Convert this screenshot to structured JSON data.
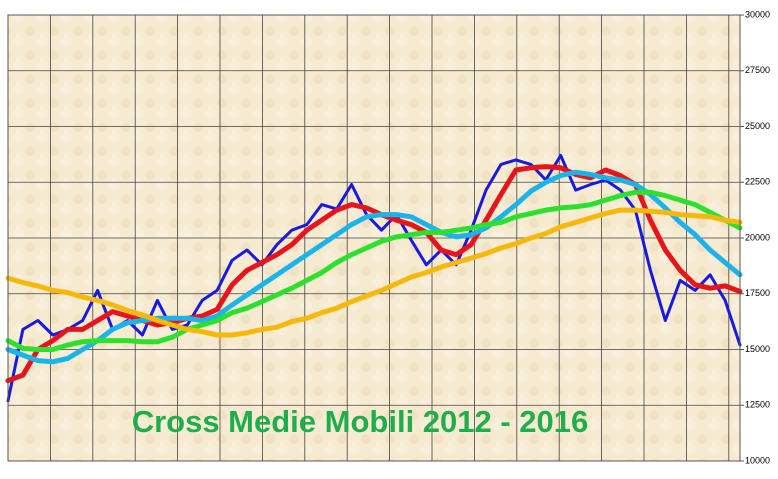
{
  "chart_data": {
    "type": "line",
    "title": "Cross Medie Mobili 2012 - 2016",
    "x": [
      0,
      1,
      2,
      3,
      4,
      5,
      6,
      7,
      8,
      9,
      10,
      11,
      12,
      13,
      14,
      15,
      16,
      17,
      18,
      19,
      20,
      21,
      22,
      23,
      24,
      25,
      26,
      27,
      28,
      29,
      30,
      31,
      32,
      33,
      34,
      35,
      36,
      37,
      38,
      39,
      40,
      41,
      42,
      43,
      44,
      45,
      46,
      47,
      48,
      49
    ],
    "xlim": [
      0,
      49
    ],
    "ylim": [
      10000,
      30000
    ],
    "yticks": [
      10000,
      12500,
      15000,
      17500,
      20000,
      22500,
      25000,
      27500,
      30000
    ],
    "grid": true,
    "series": [
      {
        "color": "#1a1adc",
        "values": [
          12700,
          15900,
          16300,
          15650,
          15900,
          16300,
          17650,
          15900,
          16300,
          15650,
          17200,
          15900,
          16100,
          17200,
          17650,
          19000,
          19460,
          18800,
          19700,
          20350,
          20600,
          21500,
          21300,
          22400,
          21050,
          20350,
          21050,
          19900,
          18800,
          19460,
          18800,
          20350,
          22150,
          23300,
          23500,
          23300,
          22600,
          23700,
          22150,
          22400,
          22600,
          22150,
          21250,
          18550,
          16300,
          18100,
          17650,
          18350,
          17200,
          15200
        ]
      },
      {
        "color": "#e8141c",
        "values": [
          13600,
          13850,
          15000,
          15400,
          15900,
          15900,
          16300,
          16700,
          16500,
          16300,
          16100,
          16200,
          16400,
          16500,
          16800,
          17900,
          18550,
          18900,
          19250,
          19700,
          20350,
          20800,
          21250,
          21500,
          21350,
          21050,
          20800,
          20600,
          20250,
          19460,
          19250,
          19700,
          20800,
          21950,
          23050,
          23150,
          23200,
          23150,
          22850,
          22700,
          23050,
          22800,
          22400,
          20800,
          19460,
          18550,
          17900,
          17750,
          17850,
          17600
        ]
      },
      {
        "color": "#1cb4e8",
        "values": [
          15000,
          14750,
          14500,
          14450,
          14600,
          15000,
          15400,
          15900,
          16200,
          16300,
          16400,
          16400,
          16400,
          16300,
          16500,
          17000,
          17450,
          17900,
          18350,
          18800,
          19250,
          19700,
          20150,
          20600,
          20950,
          21050,
          21050,
          20950,
          20600,
          20250,
          20050,
          20150,
          20450,
          20950,
          21500,
          22100,
          22500,
          22800,
          22950,
          22850,
          22700,
          22600,
          22400,
          21950,
          21350,
          20700,
          20150,
          19460,
          18900,
          18350
        ]
      },
      {
        "color": "#2ee02e",
        "values": [
          15400,
          15050,
          15000,
          15000,
          15200,
          15350,
          15400,
          15400,
          15400,
          15350,
          15350,
          15550,
          15900,
          16100,
          16300,
          16650,
          16850,
          17150,
          17450,
          17750,
          18100,
          18450,
          18900,
          19250,
          19550,
          19850,
          20050,
          20150,
          20250,
          20250,
          20350,
          20450,
          20600,
          20700,
          20950,
          21100,
          21250,
          21350,
          21400,
          21500,
          21700,
          21900,
          22050,
          22050,
          21900,
          21700,
          21500,
          21150,
          20800,
          20450
        ]
      },
      {
        "color": "#f7b80c",
        "values": [
          18200,
          18000,
          17850,
          17650,
          17550,
          17350,
          17200,
          17000,
          16750,
          16550,
          16300,
          16100,
          15900,
          15800,
          15650,
          15650,
          15750,
          15900,
          16000,
          16250,
          16400,
          16650,
          16850,
          17150,
          17400,
          17650,
          17950,
          18250,
          18450,
          18700,
          18900,
          19100,
          19300,
          19550,
          19750,
          20000,
          20200,
          20500,
          20700,
          20900,
          21100,
          21250,
          21250,
          21200,
          21150,
          21050,
          21000,
          20950,
          20800,
          20700
        ]
      }
    ]
  }
}
